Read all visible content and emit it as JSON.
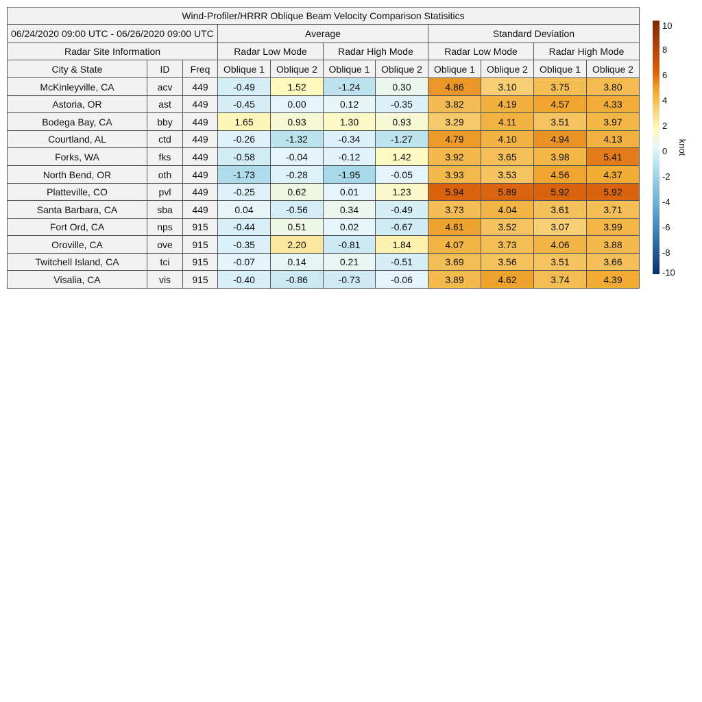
{
  "table": {
    "title": "Wind-Profiler/HRRR Oblique Beam Velocity Comparison Statisitics",
    "date_range": "06/24/2020 09:00 UTC - 06/26/2020 09:00 UTC",
    "average_label": "Average",
    "std_label": "Standard Deviation",
    "site_info_label": "Radar Site Information",
    "low_mode_label": "Radar Low Mode",
    "high_mode_label": "Radar High Mode",
    "col_city": "City & State",
    "col_id": "ID",
    "col_freq": "Freq",
    "oblique1": "Oblique 1",
    "oblique2": "Oblique 2"
  },
  "chart_data": {
    "type": "heatmap",
    "title": "Wind-Profiler/HRRR Oblique Beam Velocity Comparison Statisitics",
    "columns": [
      "Average Radar Low Mode Oblique 1",
      "Average Radar Low Mode Oblique 2",
      "Average Radar High Mode Oblique 1",
      "Average Radar High Mode Oblique 2",
      "Standard Deviation Radar Low Mode Oblique 1",
      "Standard Deviation Radar Low Mode Oblique 2",
      "Standard Deviation Radar High Mode Oblique 1",
      "Standard Deviation Radar High Mode Oblique 2"
    ],
    "rows": [
      {
        "city": "McKinleyville, CA",
        "id": "acv",
        "freq": "449",
        "values": [
          "-0.49",
          "1.52",
          "-1.24",
          "0.30",
          "4.86",
          "3.10",
          "3.75",
          "3.80"
        ]
      },
      {
        "city": "Astoria, OR",
        "id": "ast",
        "freq": "449",
        "values": [
          "-0.45",
          "0.00",
          "0.12",
          "-0.35",
          "3.82",
          "4.19",
          "4.57",
          "4.33"
        ]
      },
      {
        "city": "Bodega Bay, CA",
        "id": "bby",
        "freq": "449",
        "values": [
          "1.65",
          "0.93",
          "1.30",
          "0.93",
          "3.29",
          "4.11",
          "3.51",
          "3.97"
        ]
      },
      {
        "city": "Courtland, AL",
        "id": "ctd",
        "freq": "449",
        "values": [
          "-0.26",
          "-1.32",
          "-0.34",
          "-1.27",
          "4.79",
          "4.10",
          "4.94",
          "4.13"
        ]
      },
      {
        "city": "Forks, WA",
        "id": "fks",
        "freq": "449",
        "values": [
          "-0.58",
          "-0.04",
          "-0.12",
          "1.42",
          "3.92",
          "3.65",
          "3.98",
          "5.41"
        ]
      },
      {
        "city": "North Bend, OR",
        "id": "oth",
        "freq": "449",
        "values": [
          "-1.73",
          "-0.28",
          "-1.95",
          "-0.05",
          "3.93",
          "3.53",
          "4.56",
          "4.37"
        ]
      },
      {
        "city": "Platteville, CO",
        "id": "pvl",
        "freq": "449",
        "values": [
          "-0.25",
          "0.62",
          "0.01",
          "1.23",
          "5.94",
          "5.89",
          "5.92",
          "5.92"
        ]
      },
      {
        "city": "Santa Barbara, CA",
        "id": "sba",
        "freq": "449",
        "values": [
          "0.04",
          "-0.56",
          "0.34",
          "-0.49",
          "3.73",
          "4.04",
          "3.61",
          "3.71"
        ]
      },
      {
        "city": "Fort Ord, CA",
        "id": "nps",
        "freq": "915",
        "values": [
          "-0.44",
          "0.51",
          "0.02",
          "-0.67",
          "4.61",
          "3.52",
          "3.07",
          "3.99"
        ]
      },
      {
        "city": "Oroville, CA",
        "id": "ove",
        "freq": "915",
        "values": [
          "-0.35",
          "2.20",
          "-0.81",
          "1.84",
          "4.07",
          "3.73",
          "4.06",
          "3.88"
        ]
      },
      {
        "city": "Twitchell Island, CA",
        "id": "tci",
        "freq": "915",
        "values": [
          "-0.07",
          "0.14",
          "0.21",
          "-0.51",
          "3.69",
          "3.56",
          "3.51",
          "3.66"
        ]
      },
      {
        "city": "Visalia, CA",
        "id": "vis",
        "freq": "915",
        "values": [
          "-0.40",
          "-0.86",
          "-0.73",
          "-0.06",
          "3.89",
          "4.62",
          "3.74",
          "4.39"
        ]
      }
    ],
    "colorbar": {
      "label": "knot",
      "range": [
        -10,
        10
      ],
      "ticks": [
        10,
        8,
        6,
        4,
        2,
        0,
        -2,
        -4,
        -6,
        -8,
        -10
      ]
    },
    "colors": {
      "neg_max": "#08306b",
      "neg_mid": "#4a90c4",
      "neg_low": "#a6d8e8",
      "zero": "#e6f5fb",
      "pos_low": "#fffac0",
      "pos_mid": "#f0a830",
      "pos_high": "#d95f0e",
      "pos_max": "#7f2704"
    }
  }
}
